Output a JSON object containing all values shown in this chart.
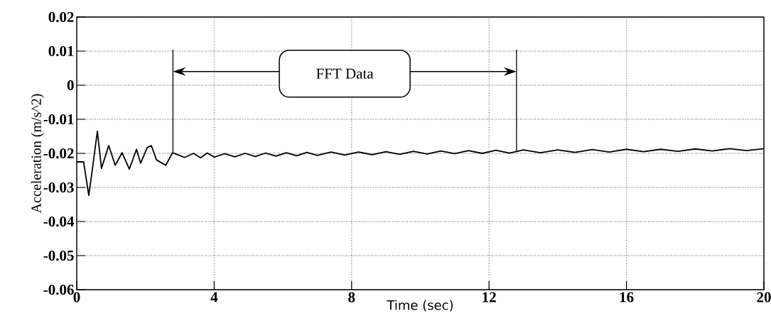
{
  "chart_data": {
    "type": "line",
    "xlabel": "Time (sec)",
    "ylabel": "Acceleration (m/s^2)",
    "xlim": [
      0,
      20
    ],
    "ylim": [
      -0.06,
      0.02
    ],
    "xticks": [
      0,
      4,
      8,
      12,
      16,
      20
    ],
    "yticks": [
      -0.06,
      -0.05,
      -0.04,
      -0.03,
      -0.02,
      -0.01,
      0,
      0.01,
      0.02
    ],
    "grid": true,
    "annotations": [
      "FFT Data"
    ],
    "series": [
      {
        "color": "#000000",
        "x": [
          0,
          0.2,
          0.35,
          0.45,
          0.6,
          0.72,
          0.93,
          1.12,
          1.32,
          1.53,
          1.74,
          1.86,
          2.05,
          2.17,
          2.32,
          2.59,
          2.79,
          3.14,
          3.4,
          3.6,
          3.8,
          4.0,
          4.3,
          4.6,
          4.9,
          5.2,
          5.5,
          5.8,
          6.1,
          6.4,
          6.7,
          7.0,
          7.4,
          7.8,
          8.2,
          8.6,
          9.0,
          9.4,
          9.8,
          10.2,
          10.6,
          11.0,
          11.4,
          11.8,
          12.2,
          12.6,
          13.0,
          13.5,
          14.0,
          14.5,
          15.0,
          15.5,
          16.0,
          16.5,
          17.0,
          17.5,
          18.0,
          18.5,
          19.0,
          19.5,
          20.0
        ],
        "values": [
          -0.0225,
          -0.0225,
          -0.0323,
          -0.025,
          -0.0135,
          -0.0244,
          -0.0177,
          -0.0235,
          -0.0198,
          -0.0246,
          -0.0188,
          -0.0229,
          -0.0183,
          -0.0177,
          -0.0219,
          -0.0235,
          -0.0198,
          -0.0212,
          -0.02,
          -0.0213,
          -0.0199,
          -0.0211,
          -0.0201,
          -0.021,
          -0.02,
          -0.0209,
          -0.0199,
          -0.0208,
          -0.0198,
          -0.0207,
          -0.0197,
          -0.0206,
          -0.0196,
          -0.0205,
          -0.0196,
          -0.0204,
          -0.0195,
          -0.0203,
          -0.0194,
          -0.0202,
          -0.0193,
          -0.0201,
          -0.0192,
          -0.02,
          -0.0191,
          -0.0199,
          -0.019,
          -0.0198,
          -0.019,
          -0.0197,
          -0.0189,
          -0.0196,
          -0.0188,
          -0.0195,
          -0.0188,
          -0.0194,
          -0.0187,
          -0.0193,
          -0.0186,
          -0.0192,
          -0.0186
        ]
      }
    ]
  }
}
